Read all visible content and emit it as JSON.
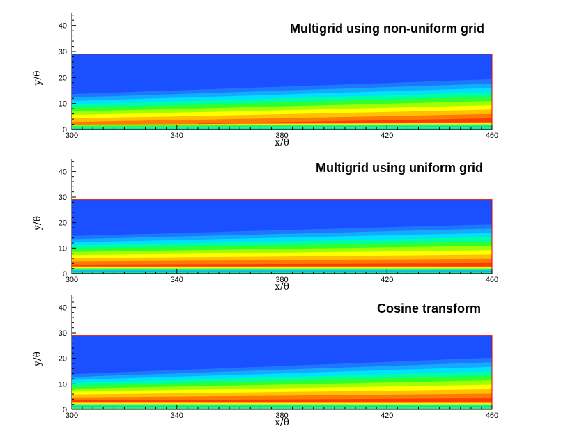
{
  "chart_data": [
    {
      "type": "heatmap",
      "title": "Multigrid using non-uniform grid",
      "xlabel": "x/θ",
      "ylabel": "y/θ",
      "xlim": [
        300,
        460
      ],
      "ylim": [
        0,
        45
      ],
      "x_ticks": [
        300,
        340,
        380,
        420,
        460
      ],
      "y_ticks": [
        0,
        10,
        20,
        30,
        40
      ],
      "field_extent": {
        "x": [
          300,
          460
        ],
        "y": [
          0,
          29
        ]
      },
      "colormap": [
        "#1a50ff",
        "#1e78ff",
        "#14aaff",
        "#00e0ff",
        "#00ffa0",
        "#30ff30",
        "#a0ff00",
        "#ffff00",
        "#ffc000",
        "#ff7a00",
        "#ff3c00",
        "#e81000"
      ],
      "field_profile": {
        "x": [
          300,
          460
        ],
        "boundary_layer_edge_y": [
          15,
          21
        ],
        "peak_y": [
          2,
          3
        ],
        "peak_level_fraction": [
          0.88,
          0.98
        ]
      }
    },
    {
      "type": "heatmap",
      "title": "Multigrid using uniform grid",
      "xlabel": "x/θ",
      "ylabel": "y/θ",
      "xlim": [
        300,
        460
      ],
      "ylim": [
        0,
        45
      ],
      "x_ticks": [
        300,
        340,
        380,
        420,
        460
      ],
      "y_ticks": [
        0,
        10,
        20,
        30,
        40
      ],
      "field_extent": {
        "x": [
          300,
          460
        ],
        "y": [
          0,
          29
        ]
      },
      "colormap": [
        "#1a50ff",
        "#1e78ff",
        "#14aaff",
        "#00e0ff",
        "#00ffa0",
        "#30ff30",
        "#a0ff00",
        "#ffff00",
        "#ffc000",
        "#ff7a00",
        "#ff3c00",
        "#e81000"
      ],
      "field_profile": {
        "x": [
          300,
          460
        ],
        "boundary_layer_edge_y": [
          16,
          21
        ],
        "peak_y": [
          3,
          3
        ],
        "peak_level_fraction": [
          0.95,
          0.97
        ]
      }
    },
    {
      "type": "heatmap",
      "title": "Cosine transform",
      "xlabel": "x/θ",
      "ylabel": "y/θ",
      "xlim": [
        300,
        460
      ],
      "ylim": [
        0,
        45
      ],
      "x_ticks": [
        300,
        340,
        380,
        420,
        460
      ],
      "y_ticks": [
        0,
        10,
        20,
        30,
        40
      ],
      "field_extent": {
        "x": [
          300,
          460
        ],
        "y": [
          0,
          29
        ]
      },
      "colormap": [
        "#1a50ff",
        "#1e78ff",
        "#14aaff",
        "#00e0ff",
        "#00ffa0",
        "#30ff30",
        "#a0ff00",
        "#ffff00",
        "#ffc000",
        "#ff7a00",
        "#ff3c00",
        "#e81000"
      ],
      "field_profile": {
        "x": [
          300,
          460
        ],
        "boundary_layer_edge_y": [
          15,
          22
        ],
        "peak_y": [
          3,
          3
        ],
        "peak_level_fraction": [
          0.95,
          0.98
        ]
      }
    }
  ]
}
